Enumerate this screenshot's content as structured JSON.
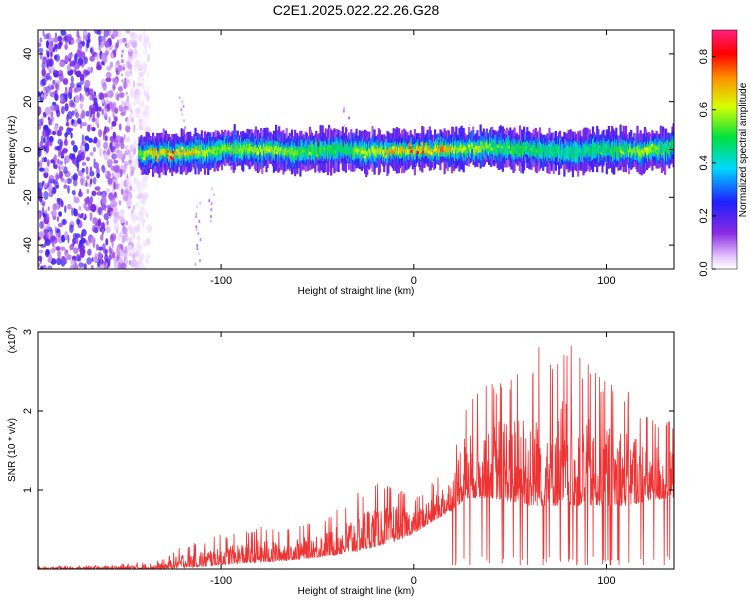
{
  "chart_data": [
    {
      "type": "heatmap",
      "title": "C2E1.2025.022.22.26.G28",
      "xlabel": "Height of straight line (km)",
      "ylabel": "Frequency (Hz)",
      "xlim": [
        -195,
        135
      ],
      "ylim": [
        -50,
        50
      ],
      "x_ticks": [
        -100,
        0,
        100
      ],
      "x_tick_labels": [
        "-100",
        "0",
        "100"
      ],
      "y_ticks": [
        -40,
        -20,
        0,
        20,
        40
      ],
      "y_tick_labels": [
        "-40",
        "-20",
        "0",
        "20",
        "40"
      ],
      "colorbar": {
        "label": "Normalized spectral amplitude",
        "range": [
          0,
          0.9
        ],
        "ticks": [
          0,
          0.2,
          0.4,
          0.6,
          0.8
        ],
        "tick_labels": [
          "0.0",
          "0.2",
          "0.4",
          "0.6",
          "0.8"
        ],
        "colormap": "rainbow (white → violet → blue → cyan → green → yellow → red → magenta)"
      },
      "ridge_profile": {
        "x": [
          -143,
          -125,
          -110,
          -95,
          -80,
          -60,
          -40,
          -20,
          0,
          20,
          40,
          60,
          80,
          100,
          120,
          135
        ],
        "center_freq": [
          -2,
          -2,
          -1,
          0,
          0,
          -1,
          0,
          -1,
          0,
          0,
          1,
          0,
          -1,
          0,
          -1,
          1
        ],
        "peak_amplitude": [
          0.55,
          0.82,
          0.6,
          0.55,
          0.6,
          0.55,
          0.5,
          0.62,
          0.85,
          0.65,
          0.55,
          0.5,
          0.45,
          0.5,
          0.6,
          0.5
        ]
      },
      "noise_region": {
        "x_range": [
          -195,
          -143
        ],
        "freq_range": [
          -50,
          50
        ],
        "typical_amplitude": 0.2
      }
    },
    {
      "type": "line",
      "xlabel": "Height of straight line (km)",
      "ylabel": "SNR (10 * v/v)",
      "y_scale_label": "(x10",
      "y_scale_exponent": "4",
      "xlim": [
        -195,
        135
      ],
      "ylim": [
        0,
        3
      ],
      "x_ticks": [
        -100,
        0,
        100
      ],
      "x_tick_labels": [
        "-100",
        "0",
        "100"
      ],
      "y_ticks": [
        1,
        2,
        3
      ],
      "y_tick_labels": [
        "1",
        "2",
        "3"
      ],
      "color": "#ee3333",
      "envelope": {
        "x": [
          -195,
          -160,
          -130,
          -120,
          -110,
          -100,
          -90,
          -80,
          -70,
          -60,
          -50,
          -40,
          -30,
          -20,
          -10,
          0,
          10,
          20,
          25,
          30,
          40,
          50,
          60,
          65,
          70,
          80,
          90,
          100,
          110,
          120,
          135
        ],
        "base": [
          0.0,
          0.0,
          0.0,
          0.02,
          0.03,
          0.05,
          0.07,
          0.08,
          0.1,
          0.12,
          0.15,
          0.18,
          0.22,
          0.28,
          0.35,
          0.45,
          0.6,
          0.75,
          0.85,
          0.9,
          0.9,
          0.85,
          0.8,
          0.8,
          0.8,
          0.8,
          0.8,
          0.8,
          0.8,
          0.85,
          0.9
        ],
        "peak": [
          0.03,
          0.05,
          0.12,
          0.3,
          0.35,
          0.45,
          0.45,
          0.55,
          0.5,
          0.55,
          0.6,
          0.75,
          0.95,
          1.1,
          1.05,
          0.9,
          1.1,
          1.4,
          2.1,
          2.2,
          2.4,
          2.5,
          2.6,
          3.0,
          2.8,
          2.9,
          2.6,
          2.4,
          2.3,
          2.0,
          1.9
        ]
      }
    }
  ]
}
